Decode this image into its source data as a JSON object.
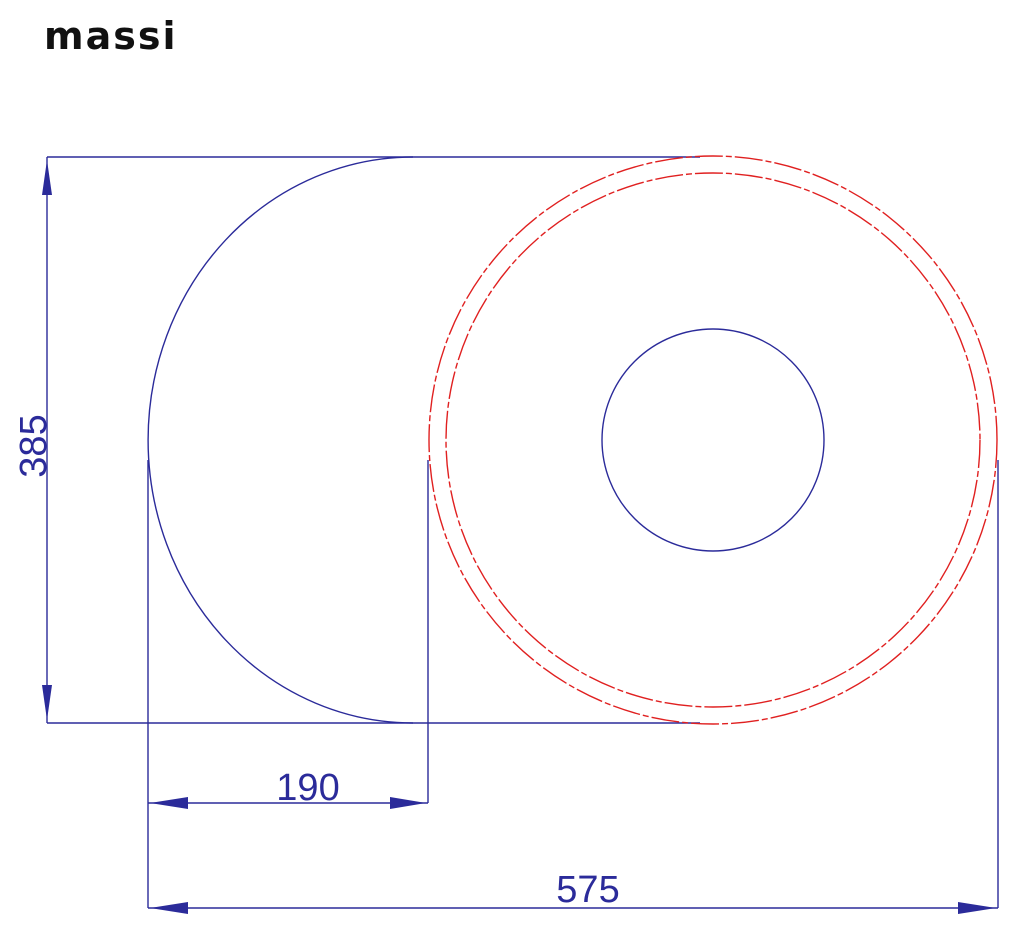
{
  "logo": {
    "text": "massi"
  },
  "drawing": {
    "dimensions": {
      "height": "385",
      "inner_offset": "190",
      "overall_width": "575"
    },
    "colors": {
      "outline": "#2b2b9a",
      "basin_rim": "#e02020"
    }
  }
}
